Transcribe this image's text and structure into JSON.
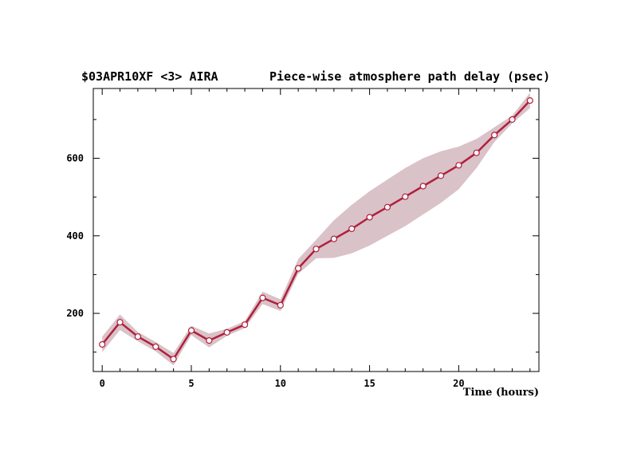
{
  "header": {
    "title_left": "$03APR10XF <3>  AIRA",
    "title_right": "Piece-wise atmosphere path delay (psec)"
  },
  "chart_data": {
    "type": "line",
    "title": "Piece-wise atmosphere path delay (psec)",
    "xlabel": "Time (hours)",
    "ylabel": "",
    "xlim": [
      -0.5,
      24.5
    ],
    "ylim": [
      50,
      780
    ],
    "x_ticks": [
      0,
      5,
      10,
      15,
      20
    ],
    "x_tick_labels": [
      "0",
      "5",
      "10",
      "15",
      "20"
    ],
    "y_ticks": [
      200,
      400,
      600
    ],
    "y_tick_labels": [
      "200",
      "400",
      "600"
    ],
    "x_minor_step": 1,
    "y_minor_step": 100,
    "grid": false,
    "colors": {
      "line": "#b0203c",
      "band": "#d9c2c8",
      "marker_fill": "#ffffff",
      "marker_edge": "#b0203c"
    },
    "series": [
      {
        "x": [
          0,
          1,
          2,
          3,
          4,
          5,
          6,
          7,
          8,
          9,
          10,
          11,
          12,
          13,
          14,
          15,
          16,
          17,
          18,
          19,
          20,
          21,
          22,
          23,
          24
        ],
        "y": [
          120,
          177,
          140,
          114,
          82,
          156,
          130,
          151,
          171,
          240,
          221,
          316,
          366,
          392,
          418,
          448,
          474,
          501,
          528,
          555,
          582,
          614,
          660,
          700,
          749
        ],
        "upper": [
          140,
          197,
          152,
          126,
          98,
          168,
          148,
          160,
          180,
          256,
          236,
          340,
          390,
          440,
          480,
          515,
          545,
          575,
          600,
          618,
          630,
          650,
          680,
          710,
          769
        ],
        "lower": [
          100,
          157,
          128,
          102,
          66,
          144,
          112,
          142,
          162,
          224,
          206,
          302,
          342,
          343,
          355,
          375,
          400,
          425,
          455,
          485,
          520,
          575,
          642,
          690,
          729
        ]
      }
    ]
  }
}
